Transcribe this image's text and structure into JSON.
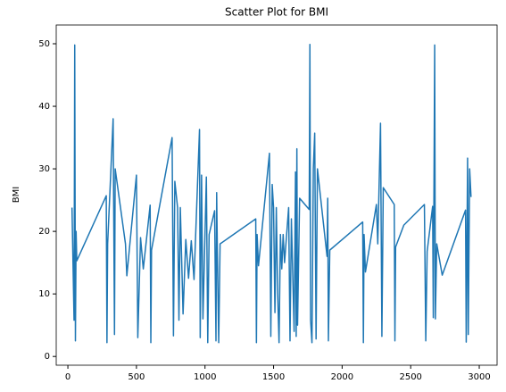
{
  "chart_data": {
    "type": "line",
    "title": "Scatter Plot for BMI",
    "ylabel": "BMI",
    "color": "#1f77b4",
    "x": [
      30,
      45,
      50,
      55,
      60,
      65,
      280,
      285,
      290,
      330,
      340,
      345,
      420,
      430,
      500,
      510,
      530,
      550,
      600,
      605,
      610,
      760,
      770,
      780,
      800,
      810,
      820,
      840,
      860,
      880,
      900,
      920,
      960,
      965,
      975,
      985,
      1010,
      1020,
      1030,
      1070,
      1080,
      1085,
      1090,
      1100,
      1110,
      1370,
      1375,
      1380,
      1390,
      1470,
      1480,
      1490,
      1500,
      1510,
      1520,
      1530,
      1540,
      1550,
      1560,
      1570,
      1580,
      1610,
      1620,
      1630,
      1650,
      1660,
      1665,
      1670,
      1675,
      1690,
      1760,
      1765,
      1770,
      1780,
      1790,
      1800,
      1810,
      1820,
      1890,
      1895,
      1900,
      1910,
      2150,
      2155,
      2160,
      2170,
      2250,
      2260,
      2280,
      2290,
      2300,
      2380,
      2385,
      2390,
      2450,
      2600,
      2610,
      2620,
      2660,
      2665,
      2675,
      2680,
      2690,
      2730,
      2900,
      2905,
      2915,
      2920,
      2930,
      2940
    ],
    "values": [
      23.8,
      5.8,
      49.8,
      2.5,
      20,
      15.3,
      25.7,
      2.2,
      18,
      38,
      3.5,
      30,
      18,
      12.9,
      29,
      3,
      19,
      14,
      24.2,
      2.2,
      17,
      35,
      3.3,
      28,
      23.8,
      5.8,
      23.8,
      6.8,
      18.7,
      12.5,
      18.5,
      12.3,
      36.3,
      3,
      29,
      6,
      28.7,
      2.2,
      19.5,
      23.3,
      2.5,
      26.2,
      17,
      2.2,
      18,
      22,
      2.2,
      19.5,
      14.5,
      32.5,
      3.2,
      27.5,
      23.8,
      7,
      23.8,
      10,
      2.2,
      19.5,
      14,
      19.5,
      15,
      23.8,
      2.5,
      22,
      4,
      29.5,
      3.2,
      33.2,
      5,
      25.3,
      23.5,
      49.9,
      5.8,
      2.2,
      30,
      35.7,
      2.8,
      30,
      16,
      25.3,
      2.5,
      17,
      21.5,
      2.2,
      19.5,
      13.5,
      24.3,
      18,
      37.3,
      3.2,
      27,
      24.3,
      2.5,
      17.5,
      21,
      24.3,
      2.5,
      16.8,
      24,
      6.2,
      49.8,
      6,
      18,
      13,
      23.4,
      2.3,
      31.7,
      3.5,
      30,
      25.5
    ],
    "xlim": [
      -85,
      3130
    ],
    "ylim": [
      -1.4,
      53
    ],
    "xticks": [
      0,
      500,
      1000,
      1500,
      2000,
      2500,
      3000
    ],
    "yticks": [
      0,
      10,
      20,
      30,
      40,
      50
    ],
    "grid": false
  }
}
